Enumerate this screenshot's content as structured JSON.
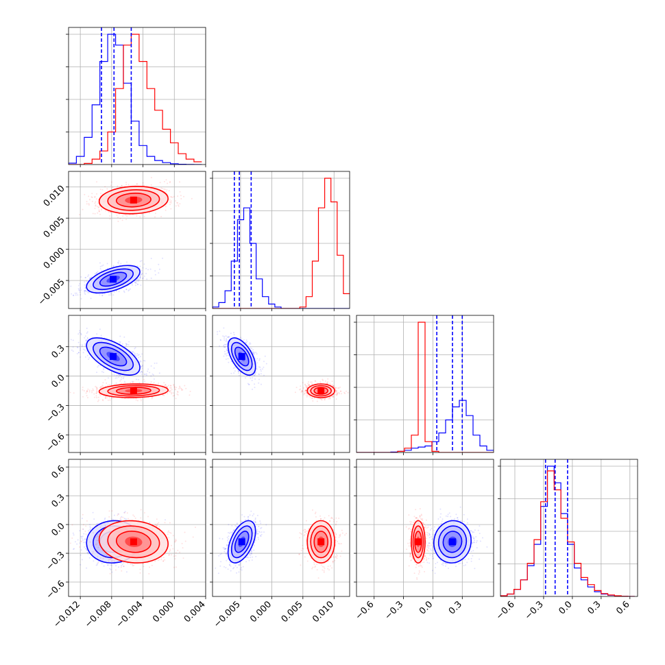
{
  "chart_data": {
    "type": "corner",
    "title": "",
    "parameters": [
      {
        "label": "",
        "range": [
          -0.0135,
          0.004
        ],
        "ticks": [
          "−0.012",
          "−0.008",
          "−0.004",
          "0.000",
          "0.004"
        ],
        "tick_values": [
          -0.012,
          -0.008,
          -0.004,
          0.0,
          0.004
        ]
      },
      {
        "label": "",
        "range": [
          -0.0095,
          0.0125
        ],
        "ticks": [
          "−0.005",
          "0.000",
          "0.005",
          "0.010"
        ],
        "tick_values": [
          -0.005,
          0.0,
          0.005,
          0.01
        ]
      },
      {
        "label": "",
        "range": [
          -0.78,
          0.62
        ],
        "ticks": [
          "−0.6",
          "−0.3",
          "0.0",
          "0.3"
        ],
        "tick_values": [
          -0.6,
          -0.3,
          0.0,
          0.3
        ]
      },
      {
        "label": "",
        "range": [
          -0.75,
          0.68
        ],
        "ticks": [
          "−0.6",
          "−0.3",
          "0.0",
          "0.3",
          "0.6"
        ],
        "tick_values": [
          -0.6,
          -0.3,
          0.0,
          0.3,
          0.6
        ]
      }
    ],
    "series": [
      {
        "color": "#0000ff",
        "mean": [
          -0.0078,
          -0.0048,
          0.2,
          -0.18
        ],
        "sd": [
          0.0017,
          0.0011,
          0.095,
          0.11
        ],
        "corr": [
          [
            0,
            1,
            0.55
          ],
          [
            0,
            2,
            -0.6
          ],
          [
            1,
            2,
            -0.55
          ],
          [
            1,
            3,
            0.5
          ],
          [
            0,
            3,
            0.05
          ],
          [
            2,
            3,
            0.05
          ]
        ],
        "quantiles": [
          [
            -0.0093,
            -0.0077,
            -0.0055
          ],
          [
            -0.006,
            -0.0052,
            -0.0033
          ],
          [
            0.04,
            0.2,
            0.3
          ],
          [
            -0.28,
            -0.18,
            -0.05
          ]
        ]
      },
      {
        "color": "#ff0000",
        "mean": [
          -0.0052,
          0.0079,
          -0.15,
          -0.18
        ],
        "sd": [
          0.0022,
          0.0011,
          0.035,
          0.11
        ],
        "corr": [
          [
            0,
            1,
            0.1
          ],
          [
            0,
            2,
            0.1
          ],
          [
            1,
            2,
            0.0
          ],
          [
            1,
            3,
            0.0
          ],
          [
            0,
            3,
            -0.1
          ],
          [
            2,
            3,
            0.0
          ]
        ],
        "quantiles": []
      }
    ],
    "histograms": [
      {
        "param": 0,
        "bins": [
          -0.0135,
          -0.0125,
          -0.0115,
          -0.0105,
          -0.0095,
          -0.0085,
          -0.0075,
          -0.0065,
          -0.0055,
          -0.0045,
          -0.0035,
          -0.0025,
          -0.0015,
          -0.0005,
          0.0005,
          0.0015,
          0.0025,
          0.0035
        ],
        "series": [
          {
            "color": "#0000ff",
            "values": [
              0.5,
              3,
              10,
              22,
              38,
              48,
              44,
              30,
              16,
              7,
              3,
              1.5,
              0.7,
              0.3,
              0.1,
              0.05,
              0
            ]
          },
          {
            "color": "#ff0000",
            "values": [
              0,
              0,
              0.4,
              2,
              5,
              12,
              28,
              44,
              48,
              38,
              28,
              20,
              13,
              8,
              4,
              2,
              1
            ]
          }
        ]
      },
      {
        "param": 1,
        "bins": [
          -0.0095,
          -0.0085,
          -0.0075,
          -0.0065,
          -0.0055,
          -0.0045,
          -0.0035,
          -0.0025,
          -0.0015,
          -0.0005,
          0.0005,
          0.0015,
          0.0025,
          0.0035,
          0.0045,
          0.0055,
          0.0065,
          0.0075,
          0.0085,
          0.0095,
          0.0105,
          0.0115,
          0.0125
        ],
        "series": [
          {
            "color": "#0000ff",
            "values": [
              0.5,
              2,
              6,
              16,
              30,
              34,
              22,
              10,
              4,
              1.5,
              0.5,
              0,
              0,
              0,
              0,
              0,
              0,
              0,
              0,
              0,
              0,
              0
            ]
          },
          {
            "color": "#ff0000",
            "values": [
              0,
              0,
              0,
              0,
              0,
              0,
              0,
              0,
              0,
              0,
              0,
              0,
              0,
              0,
              0.5,
              4,
              16,
              34,
              44,
              36,
              18,
              5
            ]
          }
        ]
      },
      {
        "param": 2,
        "bins": [
          -0.78,
          -0.71,
          -0.64,
          -0.57,
          -0.5,
          -0.43,
          -0.36,
          -0.29,
          -0.22,
          -0.15,
          -0.08,
          -0.01,
          0.06,
          0.13,
          0.2,
          0.27,
          0.34,
          0.41,
          0.48,
          0.55,
          0.62
        ],
        "series": [
          {
            "color": "#0000ff",
            "values": [
              0,
              0,
              0,
              0,
              0,
              0.2,
              0.5,
              1,
              2,
              2.5,
              3,
              5,
              9,
              15,
              21,
              24,
              17,
              8,
              3,
              1
            ]
          },
          {
            "color": "#ff0000",
            "values": [
              0,
              0,
              0,
              0,
              0,
              0,
              0.5,
              2,
              8,
              60,
              5,
              0.5,
              0,
              0,
              0,
              0,
              0,
              0,
              0,
              0
            ]
          }
        ]
      },
      {
        "param": 3,
        "bins": [
          -0.75,
          -0.68,
          -0.61,
          -0.54,
          -0.47,
          -0.4,
          -0.33,
          -0.26,
          -0.19,
          -0.12,
          -0.05,
          0.02,
          0.09,
          0.16,
          0.23,
          0.3,
          0.37,
          0.44,
          0.51,
          0.58,
          0.65
        ],
        "series": [
          {
            "color": "#0000ff",
            "values": [
              0.3,
              1,
              3,
              7,
              13,
              22,
              38,
              55,
              48,
              35,
              22,
              12,
              7,
              4,
              2,
              1,
              0.5,
              0.2,
              0.1,
              0
            ]
          },
          {
            "color": "#ff0000",
            "values": [
              0.3,
              1,
              3,
              7,
              14,
              24,
              40,
              53,
              45,
              33,
              23,
              14,
              8,
              5,
              2.5,
              1.2,
              0.6,
              0.3,
              0.1,
              0
            ]
          }
        ]
      }
    ],
    "grid": true,
    "legend": "none"
  }
}
